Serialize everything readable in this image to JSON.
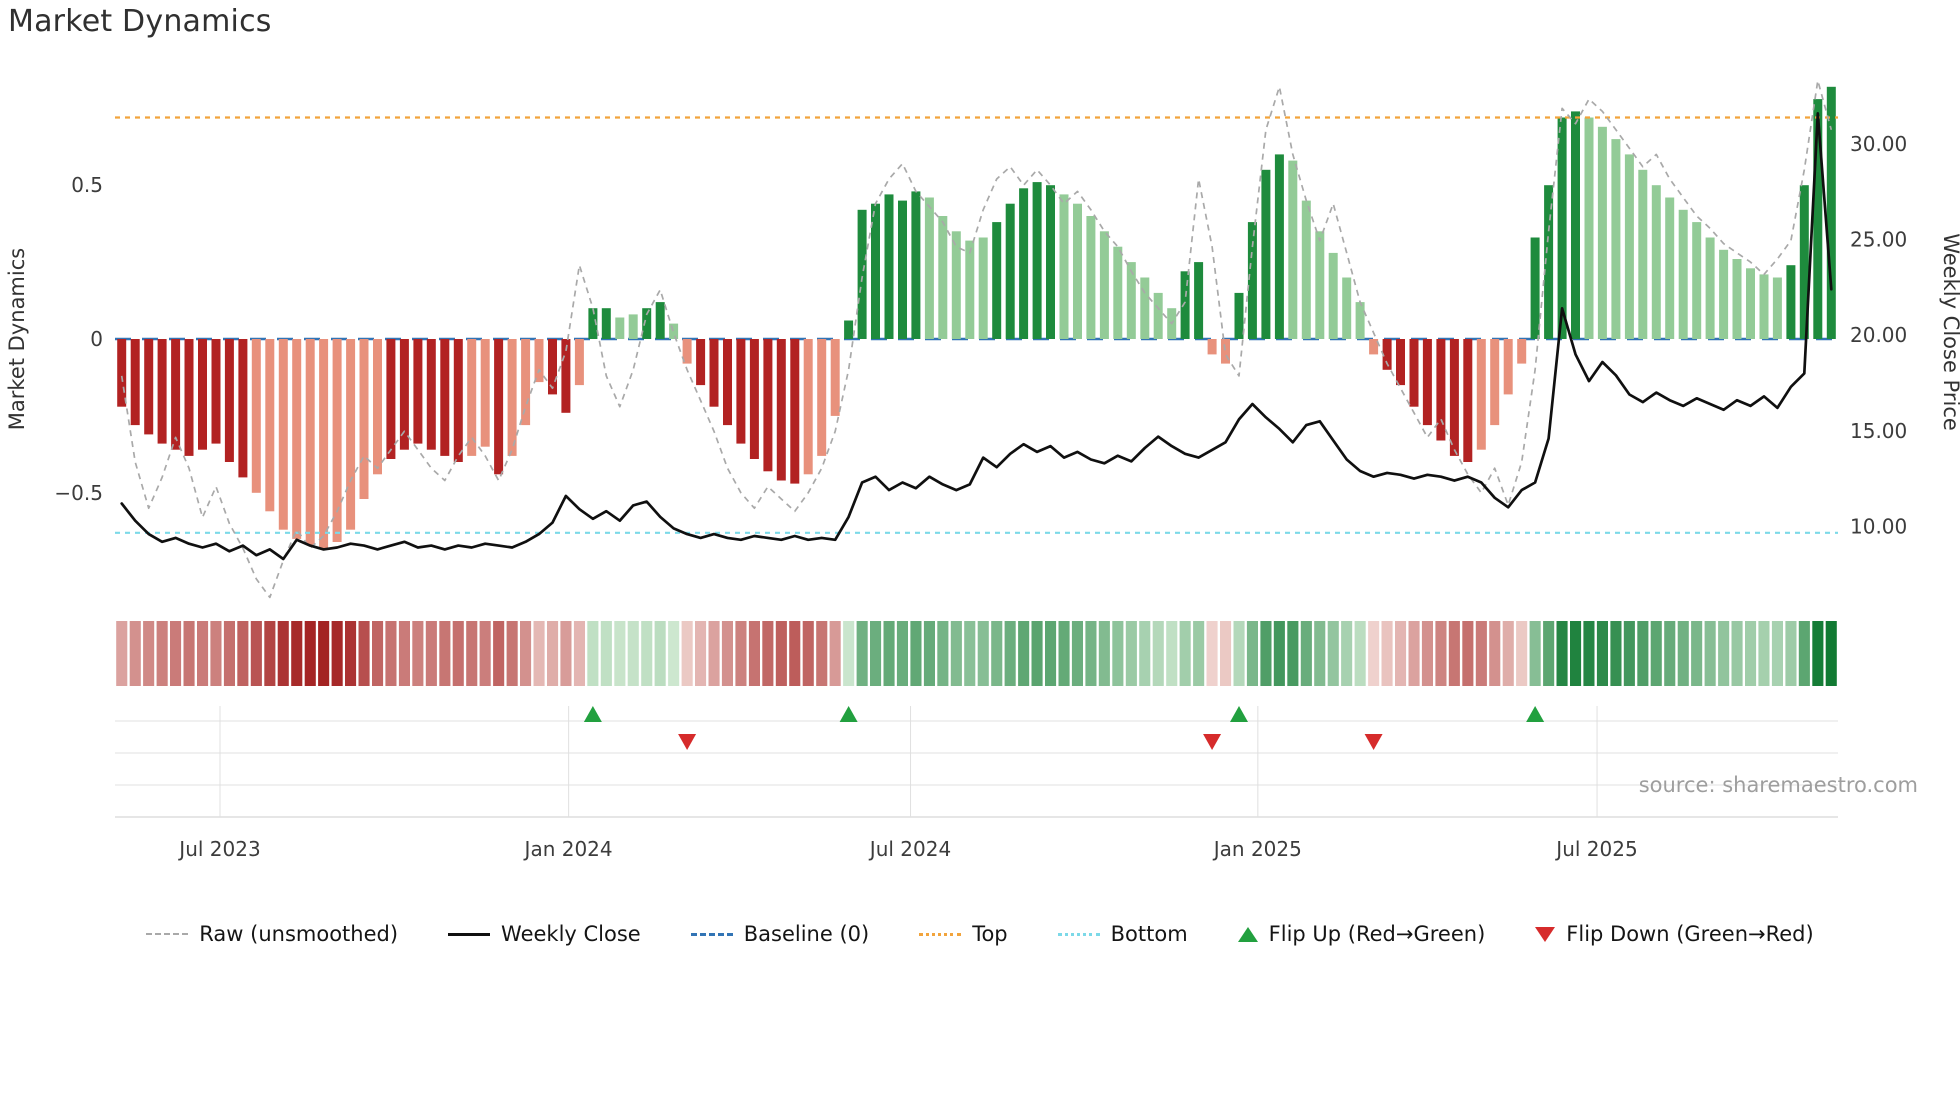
{
  "title": "Market Dynamics",
  "source": "source: sharemaestro.com",
  "axes": {
    "left_label": "Market Dynamics",
    "right_label": "Weekly Close Price",
    "left_ticks": [
      {
        "v": 0.5,
        "label": "0.5"
      },
      {
        "v": 0.0,
        "label": "0"
      },
      {
        "v": -0.5,
        "label": "−0.5"
      }
    ],
    "right_ticks": [
      {
        "v": 30,
        "label": "30.00"
      },
      {
        "v": 25,
        "label": "25.00"
      },
      {
        "v": 20,
        "label": "20.00"
      },
      {
        "v": 15,
        "label": "15.00"
      },
      {
        "v": 10,
        "label": "10.00"
      }
    ],
    "x_ticks": [
      {
        "pos": 7.3,
        "label": "Jul 2023"
      },
      {
        "pos": 33.2,
        "label": "Jan 2024"
      },
      {
        "pos": 58.6,
        "label": "Jul 2024"
      },
      {
        "pos": 84.4,
        "label": "Jan 2025"
      },
      {
        "pos": 109.6,
        "label": "Jul 2025"
      }
    ]
  },
  "legend": {
    "items": [
      {
        "label": "Raw (unsmoothed)",
        "swatch": "raw"
      },
      {
        "label": "Weekly Close",
        "swatch": "close"
      },
      {
        "label": "Baseline (0)",
        "swatch": "baseline"
      },
      {
        "label": "Top",
        "swatch": "top"
      },
      {
        "label": "Bottom",
        "swatch": "bottom"
      },
      {
        "label": "Flip Up (Red→Green)",
        "swatch": "flipup"
      },
      {
        "label": "Flip Down (Green→Red)",
        "swatch": "flipdown"
      }
    ]
  },
  "colors": {
    "bar_dark_red": "#b22222",
    "bar_light_red": "#e8917c",
    "bar_dark_green": "#1e8b3d",
    "bar_light_green": "#93cb97",
    "raw_line": "#a9a9a9",
    "close_line": "#101010",
    "baseline": "#3274b5",
    "top_line": "#f2a43c",
    "bottom_line": "#7cd9e8",
    "flip_up": "#22a03f",
    "flip_down": "#d62b2b",
    "heat_neg_max": "#a11d1d",
    "heat_neg_min": "#f5dfda",
    "heat_pos_min": "#d9eed9",
    "heat_pos_max": "#117a33",
    "grid": "#e0e0e0",
    "grid_dark": "#cccccc",
    "tick_text": "#3c3c3c",
    "axis_title_text": "#333333",
    "source_text": "#9e9e9e"
  },
  "chart_data": {
    "type": "combo",
    "x_unit": "week",
    "n_points": 128,
    "left_ylim": [
      -0.842,
      0.842
    ],
    "right_ylim": [
      6.26,
      33.34
    ],
    "reference_lines": {
      "baseline": 0,
      "top": 0.72,
      "bottom": -0.63
    },
    "flip_up_indices": [
      35,
      54,
      83,
      105
    ],
    "flip_down_indices": [
      42,
      81,
      93
    ],
    "series": [
      {
        "name": "Market Dynamics (bars)",
        "type": "bar",
        "axis": "left",
        "values": [
          -0.22,
          -0.28,
          -0.31,
          -0.34,
          -0.36,
          -0.38,
          -0.36,
          -0.34,
          -0.4,
          -0.45,
          -0.5,
          -0.56,
          -0.62,
          -0.65,
          -0.67,
          -0.68,
          -0.66,
          -0.62,
          -0.52,
          -0.44,
          -0.39,
          -0.36,
          -0.34,
          -0.36,
          -0.38,
          -0.4,
          -0.38,
          -0.35,
          -0.44,
          -0.38,
          -0.28,
          -0.14,
          -0.18,
          -0.24,
          -0.15,
          0.1,
          0.1,
          0.07,
          0.08,
          0.1,
          0.12,
          0.05,
          -0.08,
          -0.15,
          -0.22,
          -0.28,
          -0.34,
          -0.39,
          -0.43,
          -0.46,
          -0.47,
          -0.44,
          -0.38,
          -0.25,
          0.06,
          0.42,
          0.44,
          0.47,
          0.45,
          0.48,
          0.46,
          0.4,
          0.35,
          0.32,
          0.33,
          0.38,
          0.44,
          0.49,
          0.51,
          0.5,
          0.47,
          0.44,
          0.4,
          0.35,
          0.3,
          0.25,
          0.2,
          0.15,
          0.1,
          0.22,
          0.25,
          -0.05,
          -0.08,
          0.15,
          0.38,
          0.55,
          0.6,
          0.58,
          0.45,
          0.35,
          0.28,
          0.2,
          0.12,
          -0.05,
          -0.1,
          -0.15,
          -0.22,
          -0.28,
          -0.33,
          -0.38,
          -0.4,
          -0.36,
          -0.28,
          -0.18,
          -0.08,
          0.33,
          0.5,
          0.72,
          0.74,
          0.72,
          0.69,
          0.65,
          0.6,
          0.55,
          0.5,
          0.46,
          0.42,
          0.38,
          0.33,
          0.29,
          0.26,
          0.23,
          0.21,
          0.2,
          0.24,
          0.5,
          0.78,
          0.82
        ]
      },
      {
        "name": "Raw (unsmoothed)",
        "type": "line",
        "style": "dashed",
        "axis": "left",
        "values": [
          -0.12,
          -0.4,
          -0.55,
          -0.45,
          -0.32,
          -0.42,
          -0.58,
          -0.48,
          -0.6,
          -0.68,
          -0.78,
          -0.84,
          -0.72,
          -0.62,
          -0.68,
          -0.64,
          -0.56,
          -0.46,
          -0.38,
          -0.42,
          -0.36,
          -0.3,
          -0.36,
          -0.42,
          -0.46,
          -0.38,
          -0.32,
          -0.38,
          -0.46,
          -0.36,
          -0.22,
          -0.1,
          -0.16,
          -0.04,
          0.24,
          0.1,
          -0.12,
          -0.22,
          -0.1,
          0.08,
          0.16,
          0.02,
          -0.1,
          -0.2,
          -0.3,
          -0.42,
          -0.5,
          -0.55,
          -0.48,
          -0.52,
          -0.56,
          -0.5,
          -0.42,
          -0.3,
          -0.1,
          0.2,
          0.44,
          0.52,
          0.57,
          0.48,
          0.43,
          0.38,
          0.3,
          0.28,
          0.42,
          0.52,
          0.56,
          0.5,
          0.55,
          0.5,
          0.44,
          0.48,
          0.42,
          0.35,
          0.3,
          0.22,
          0.15,
          0.1,
          0.05,
          0.12,
          0.52,
          0.3,
          -0.05,
          -0.12,
          0.3,
          0.68,
          0.82,
          0.6,
          0.45,
          0.32,
          0.44,
          0.28,
          0.12,
          0.02,
          -0.08,
          -0.16,
          -0.24,
          -0.32,
          -0.26,
          -0.36,
          -0.44,
          -0.5,
          -0.42,
          -0.54,
          -0.4,
          -0.1,
          0.35,
          0.75,
          0.7,
          0.78,
          0.74,
          0.68,
          0.62,
          0.56,
          0.6,
          0.52,
          0.46,
          0.4,
          0.36,
          0.31,
          0.28,
          0.25,
          0.21,
          0.26,
          0.32,
          0.55,
          0.84,
          0.68
        ]
      },
      {
        "name": "Weekly Close",
        "type": "line",
        "style": "solid",
        "axis": "right",
        "values": [
          11.2,
          10.3,
          9.6,
          9.2,
          9.4,
          9.1,
          8.9,
          9.1,
          8.7,
          9.0,
          8.5,
          8.8,
          8.3,
          9.3,
          9.0,
          8.8,
          8.9,
          9.1,
          9.0,
          8.8,
          9.0,
          9.2,
          8.9,
          9.0,
          8.8,
          9.0,
          8.9,
          9.1,
          9.0,
          8.9,
          9.2,
          9.6,
          10.2,
          11.6,
          10.9,
          10.4,
          10.8,
          10.3,
          11.1,
          11.3,
          10.5,
          9.9,
          9.6,
          9.4,
          9.6,
          9.4,
          9.3,
          9.5,
          9.4,
          9.3,
          9.5,
          9.3,
          9.4,
          9.3,
          10.5,
          12.3,
          12.6,
          11.9,
          12.3,
          12.0,
          12.6,
          12.2,
          11.9,
          12.2,
          13.6,
          13.1,
          13.8,
          14.3,
          13.9,
          14.2,
          13.6,
          13.9,
          13.5,
          13.3,
          13.7,
          13.4,
          14.1,
          14.7,
          14.2,
          13.8,
          13.6,
          14.0,
          14.4,
          15.6,
          16.4,
          15.7,
          15.1,
          14.4,
          15.3,
          15.5,
          14.5,
          13.5,
          12.9,
          12.6,
          12.8,
          12.7,
          12.5,
          12.7,
          12.6,
          12.4,
          12.6,
          12.3,
          11.5,
          11.0,
          11.9,
          12.3,
          14.6,
          21.4,
          19.0,
          17.6,
          18.6,
          17.9,
          16.9,
          16.5,
          17.0,
          16.6,
          16.3,
          16.7,
          16.4,
          16.1,
          16.6,
          16.3,
          16.8,
          16.2,
          17.3,
          18.0,
          31.6,
          22.4
        ]
      }
    ],
    "bar_shades": [
      "dddddddd",
      "ddlll",
      "lllll",
      "llddd",
      "dddll",
      "dll",
      "lddl",
      "ddllddl",
      "lddddddddlll",
      "ddddddll",
      "llld",
      "ddddll",
      "lllllll",
      "dd",
      "ll",
      "ddddl",
      "lllll",
      "ldddddddllll",
      "ddddl",
      "llllllllllllll",
      "dddd"
    ]
  }
}
